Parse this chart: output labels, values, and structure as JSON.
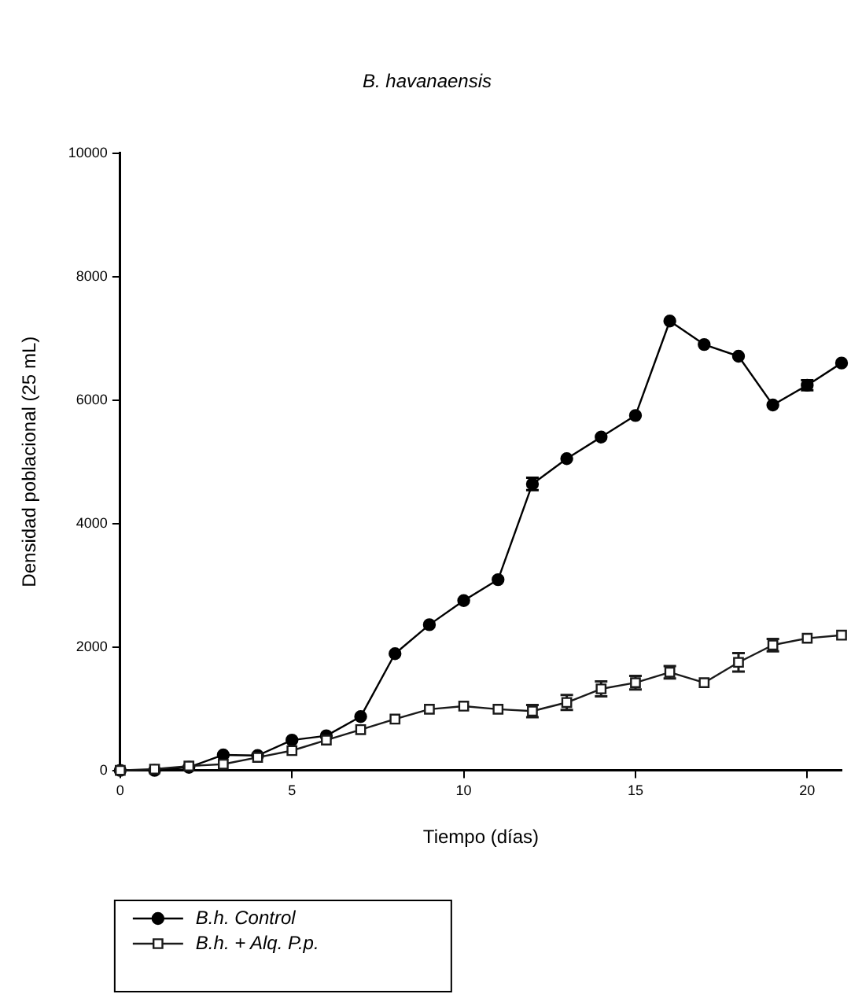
{
  "chart_data": {
    "type": "line",
    "title": "B. havanaensis",
    "xlabel": "Tiempo (días)",
    "ylabel": "Densidad poblacional (25 mL)",
    "x": [
      0,
      1,
      2,
      3,
      4,
      5,
      6,
      7,
      8,
      9,
      10,
      11,
      12,
      13,
      14,
      15,
      16,
      17,
      18,
      19,
      20,
      21
    ],
    "xlim": [
      0,
      21
    ],
    "xticks": [
      0,
      5,
      10,
      15,
      20
    ],
    "ylim": [
      0,
      10000
    ],
    "yticks": [
      0,
      2000,
      4000,
      6000,
      8000,
      10000
    ],
    "grid": false,
    "legend": "bottom left",
    "line_style": "solid",
    "series": [
      {
        "name": "B.h. Control",
        "color": "#000000",
        "marker": "circle",
        "values": [
          0,
          0,
          50,
          250,
          240,
          490,
          560,
          870,
          1890,
          2360,
          2750,
          3090,
          4640,
          5050,
          5400,
          5750,
          7280,
          6900,
          6710,
          5920,
          6240,
          6600
        ],
        "errors": [
          null,
          null,
          null,
          null,
          null,
          null,
          null,
          null,
          null,
          null,
          null,
          null,
          100,
          null,
          null,
          null,
          null,
          null,
          null,
          null,
          80,
          null
        ]
      },
      {
        "name": "B.h. + Alq. P.p.",
        "color": "#1a1a1a",
        "marker": "square",
        "values": [
          0,
          20,
          70,
          100,
          210,
          320,
          490,
          660,
          830,
          990,
          1040,
          990,
          960,
          1100,
          1320,
          1420,
          1590,
          1420,
          1750,
          2030,
          2140,
          2190
        ],
        "errors": [
          null,
          null,
          null,
          null,
          null,
          null,
          null,
          null,
          null,
          null,
          null,
          null,
          100,
          120,
          120,
          110,
          100,
          null,
          150,
          100,
          null,
          null
        ]
      }
    ]
  }
}
